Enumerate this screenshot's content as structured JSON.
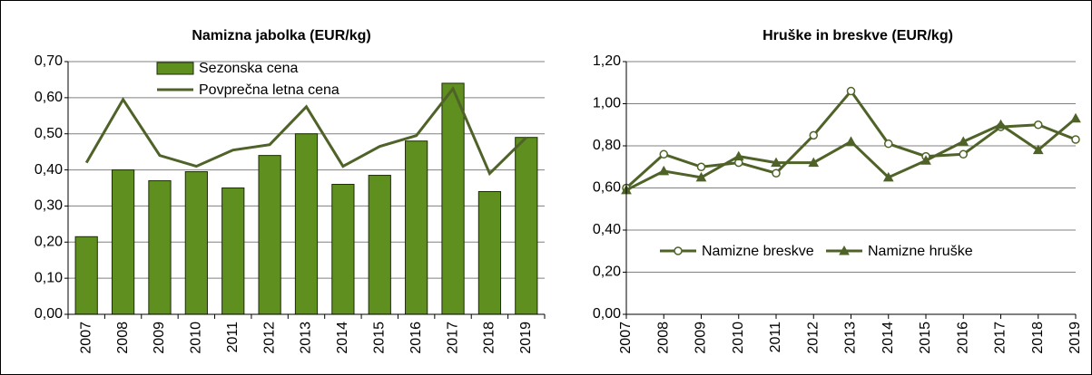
{
  "chart_data": [
    {
      "type": "combo",
      "title": "Namizna jabolka (EUR/kg)",
      "categories": [
        "2007",
        "2008",
        "2009",
        "2010",
        "2011",
        "2012",
        "2013",
        "2014",
        "2015",
        "2016",
        "2017",
        "2018",
        "2019"
      ],
      "series": [
        {
          "name": "Sezonska cena",
          "type": "bar",
          "color": "#5f8f1f",
          "values": [
            0.215,
            0.4,
            0.37,
            0.395,
            0.35,
            0.44,
            0.5,
            0.36,
            0.385,
            0.48,
            0.64,
            0.34,
            0.49
          ]
        },
        {
          "name": "Povprečna letna cena",
          "type": "line",
          "color": "#4f6228",
          "values": [
            0.42,
            0.595,
            0.44,
            0.41,
            0.455,
            0.47,
            0.575,
            0.41,
            0.465,
            0.495,
            0.625,
            0.39,
            0.49
          ]
        }
      ],
      "ylim": [
        0,
        0.7
      ],
      "yticks": [
        {
          "value": 0,
          "label": "0,00"
        },
        {
          "value": 0.1,
          "label": "0,10"
        },
        {
          "value": 0.2,
          "label": "0,20"
        },
        {
          "value": 0.3,
          "label": "0,30"
        },
        {
          "value": 0.4,
          "label": "0,40"
        },
        {
          "value": 0.5,
          "label": "0,50"
        },
        {
          "value": 0.6,
          "label": "0,60"
        },
        {
          "value": 0.7,
          "label": "0,70"
        }
      ],
      "grid": true,
      "legend": "top"
    },
    {
      "type": "line",
      "title": "Hruške in breskve (EUR/kg)",
      "categories": [
        "2007",
        "2008",
        "2009",
        "2010",
        "2011",
        "2012",
        "2013",
        "2014",
        "2015",
        "2016",
        "2017",
        "2018",
        "2019"
      ],
      "series": [
        {
          "name": "Namizne breskve",
          "marker": "circle",
          "color": "#4f6228",
          "values": [
            0.6,
            0.76,
            0.7,
            0.72,
            0.67,
            0.85,
            1.06,
            0.81,
            0.75,
            0.76,
            0.89,
            0.9,
            0.83
          ]
        },
        {
          "name": "Namizne hruške",
          "marker": "triangle",
          "color": "#4f6228",
          "values": [
            0.59,
            0.68,
            0.65,
            0.75,
            0.72,
            0.72,
            0.82,
            0.65,
            0.73,
            0.82,
            0.9,
            0.78,
            0.93
          ]
        }
      ],
      "ylim": [
        0,
        1.2
      ],
      "yticks": [
        {
          "value": 0,
          "label": "0,00"
        },
        {
          "value": 0.2,
          "label": "0,20"
        },
        {
          "value": 0.4,
          "label": "0,40"
        },
        {
          "value": 0.6,
          "label": "0,60"
        },
        {
          "value": 0.8,
          "label": "0,80"
        },
        {
          "value": 1.0,
          "label": "1,00"
        },
        {
          "value": 1.2,
          "label": "1,20"
        }
      ],
      "grid": true,
      "legend": "center"
    }
  ]
}
